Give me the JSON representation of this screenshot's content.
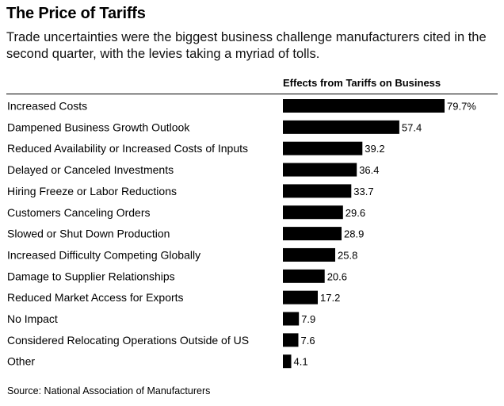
{
  "header": {
    "title": "The Price of Tariffs",
    "subtitle": "Trade uncertainties were the biggest business challenge manufacturers cited in the second quarter, with the levies taking a myriad of tolls.",
    "column_header": "Effects from Tariffs on Business"
  },
  "footer": {
    "source": "Source: National Association of Manufacturers"
  },
  "colors": {
    "bar": "#000000",
    "text": "#000000",
    "background": "#ffffff"
  },
  "chart_data": {
    "type": "bar",
    "orientation": "horizontal",
    "title": "The Price of Tariffs",
    "subtitle": "Trade uncertainties were the biggest business challenge manufacturers cited in the second quarter, with the levies taking a myriad of tolls.",
    "xlabel": "Effects from Tariffs on Business",
    "ylabel": "",
    "unit": "%",
    "xlim": [
      0,
      80
    ],
    "categories": [
      "Increased Costs",
      "Dampened Business Growth Outlook",
      "Reduced Availability or Increased Costs of Inputs",
      "Delayed or Canceled Investments",
      "Hiring Freeze or Labor Reductions",
      "Customers Canceling Orders",
      "Slowed or Shut Down Production",
      "Increased Difficulty Competing Globally",
      "Damage to Supplier Relationships",
      "Reduced Market Access for Exports",
      "No Impact",
      "Considered Relocating Operations Outside of US",
      "Other"
    ],
    "values": [
      79.7,
      57.4,
      39.2,
      36.4,
      33.7,
      29.6,
      28.9,
      25.8,
      20.6,
      17.2,
      7.9,
      7.6,
      4.1
    ],
    "value_labels": [
      "79.7%",
      "57.4",
      "39.2",
      "36.4",
      "33.7",
      "29.6",
      "28.9",
      "25.8",
      "20.6",
      "17.2",
      "7.9",
      "7.6",
      "4.1"
    ],
    "grid": false,
    "legend": "none"
  }
}
